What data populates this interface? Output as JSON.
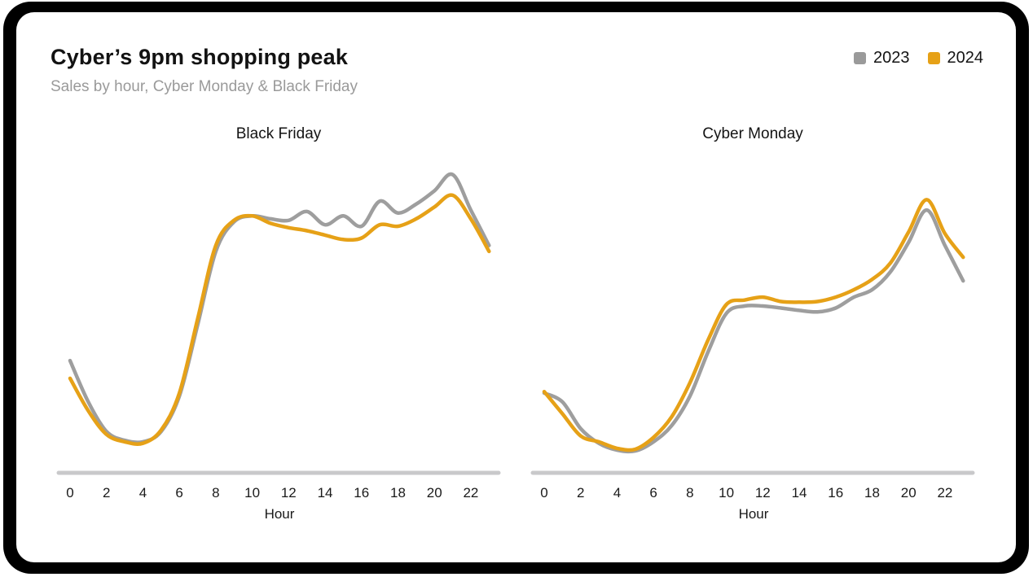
{
  "header": {
    "title": "Cyber’s 9pm shopping peak",
    "subtitle": "Sales by hour, Cyber Monday & Black Friday"
  },
  "legend": {
    "position": "top-right",
    "items": [
      {
        "label": "2023",
        "color": "#9a9a9a"
      },
      {
        "label": "2024",
        "color": "#e6a117"
      }
    ]
  },
  "colors": {
    "frame": "#000000",
    "card": "#ffffff",
    "axis": "#c9c9cb",
    "series_2023": "#9e9e9e",
    "series_2024": "#e6a117"
  },
  "chart_data": [
    {
      "type": "line",
      "title": "Black Friday",
      "xlabel": "Hour",
      "x": [
        0,
        1,
        2,
        3,
        4,
        5,
        6,
        7,
        8,
        9,
        10,
        11,
        12,
        13,
        14,
        15,
        16,
        17,
        18,
        19,
        20,
        21,
        22,
        23
      ],
      "xticks": [
        0,
        2,
        4,
        6,
        8,
        10,
        12,
        14,
        16,
        18,
        20,
        22
      ],
      "ylim": [
        0,
        105
      ],
      "grid": false,
      "series": [
        {
          "name": "2023",
          "color": "#9e9e9e",
          "values": [
            38,
            24,
            14,
            11,
            10.5,
            14,
            26,
            50,
            75,
            85,
            87,
            86,
            85.5,
            88.5,
            84,
            87,
            83.5,
            92,
            88,
            91,
            95.5,
            101,
            89,
            77
          ]
        },
        {
          "name": "2024",
          "color": "#e6a117",
          "values": [
            32,
            21,
            13,
            10.5,
            10,
            14.5,
            27,
            52,
            77,
            85.5,
            87,
            84.5,
            83,
            82,
            80.5,
            79,
            79.5,
            84,
            83.5,
            86,
            90,
            94,
            86,
            75
          ]
        }
      ]
    },
    {
      "type": "line",
      "title": "Cyber Monday",
      "xlabel": "Hour",
      "x": [
        0,
        1,
        2,
        3,
        4,
        5,
        6,
        7,
        8,
        9,
        10,
        11,
        12,
        13,
        14,
        15,
        16,
        17,
        18,
        19,
        20,
        21,
        22,
        23
      ],
      "xticks": [
        0,
        2,
        4,
        6,
        8,
        10,
        12,
        14,
        16,
        18,
        20,
        22
      ],
      "ylim": [
        0,
        105
      ],
      "grid": false,
      "series": [
        {
          "name": "2023",
          "color": "#9e9e9e",
          "values": [
            27,
            24,
            15,
            10,
            7.7,
            7.4,
            10.5,
            16,
            26,
            41,
            54,
            56.5,
            56.5,
            55.8,
            55,
            54.5,
            55.8,
            59.5,
            62,
            68,
            78,
            89,
            77,
            65
          ]
        },
        {
          "name": "2024",
          "color": "#e6a117",
          "values": [
            27.5,
            20,
            12.5,
            10.5,
            8.3,
            8,
            12,
            19,
            30.5,
            45,
            57,
            58.5,
            59.5,
            58,
            57.8,
            58,
            59.5,
            62,
            65.5,
            71,
            81.5,
            92.5,
            81,
            73
          ]
        }
      ]
    }
  ]
}
